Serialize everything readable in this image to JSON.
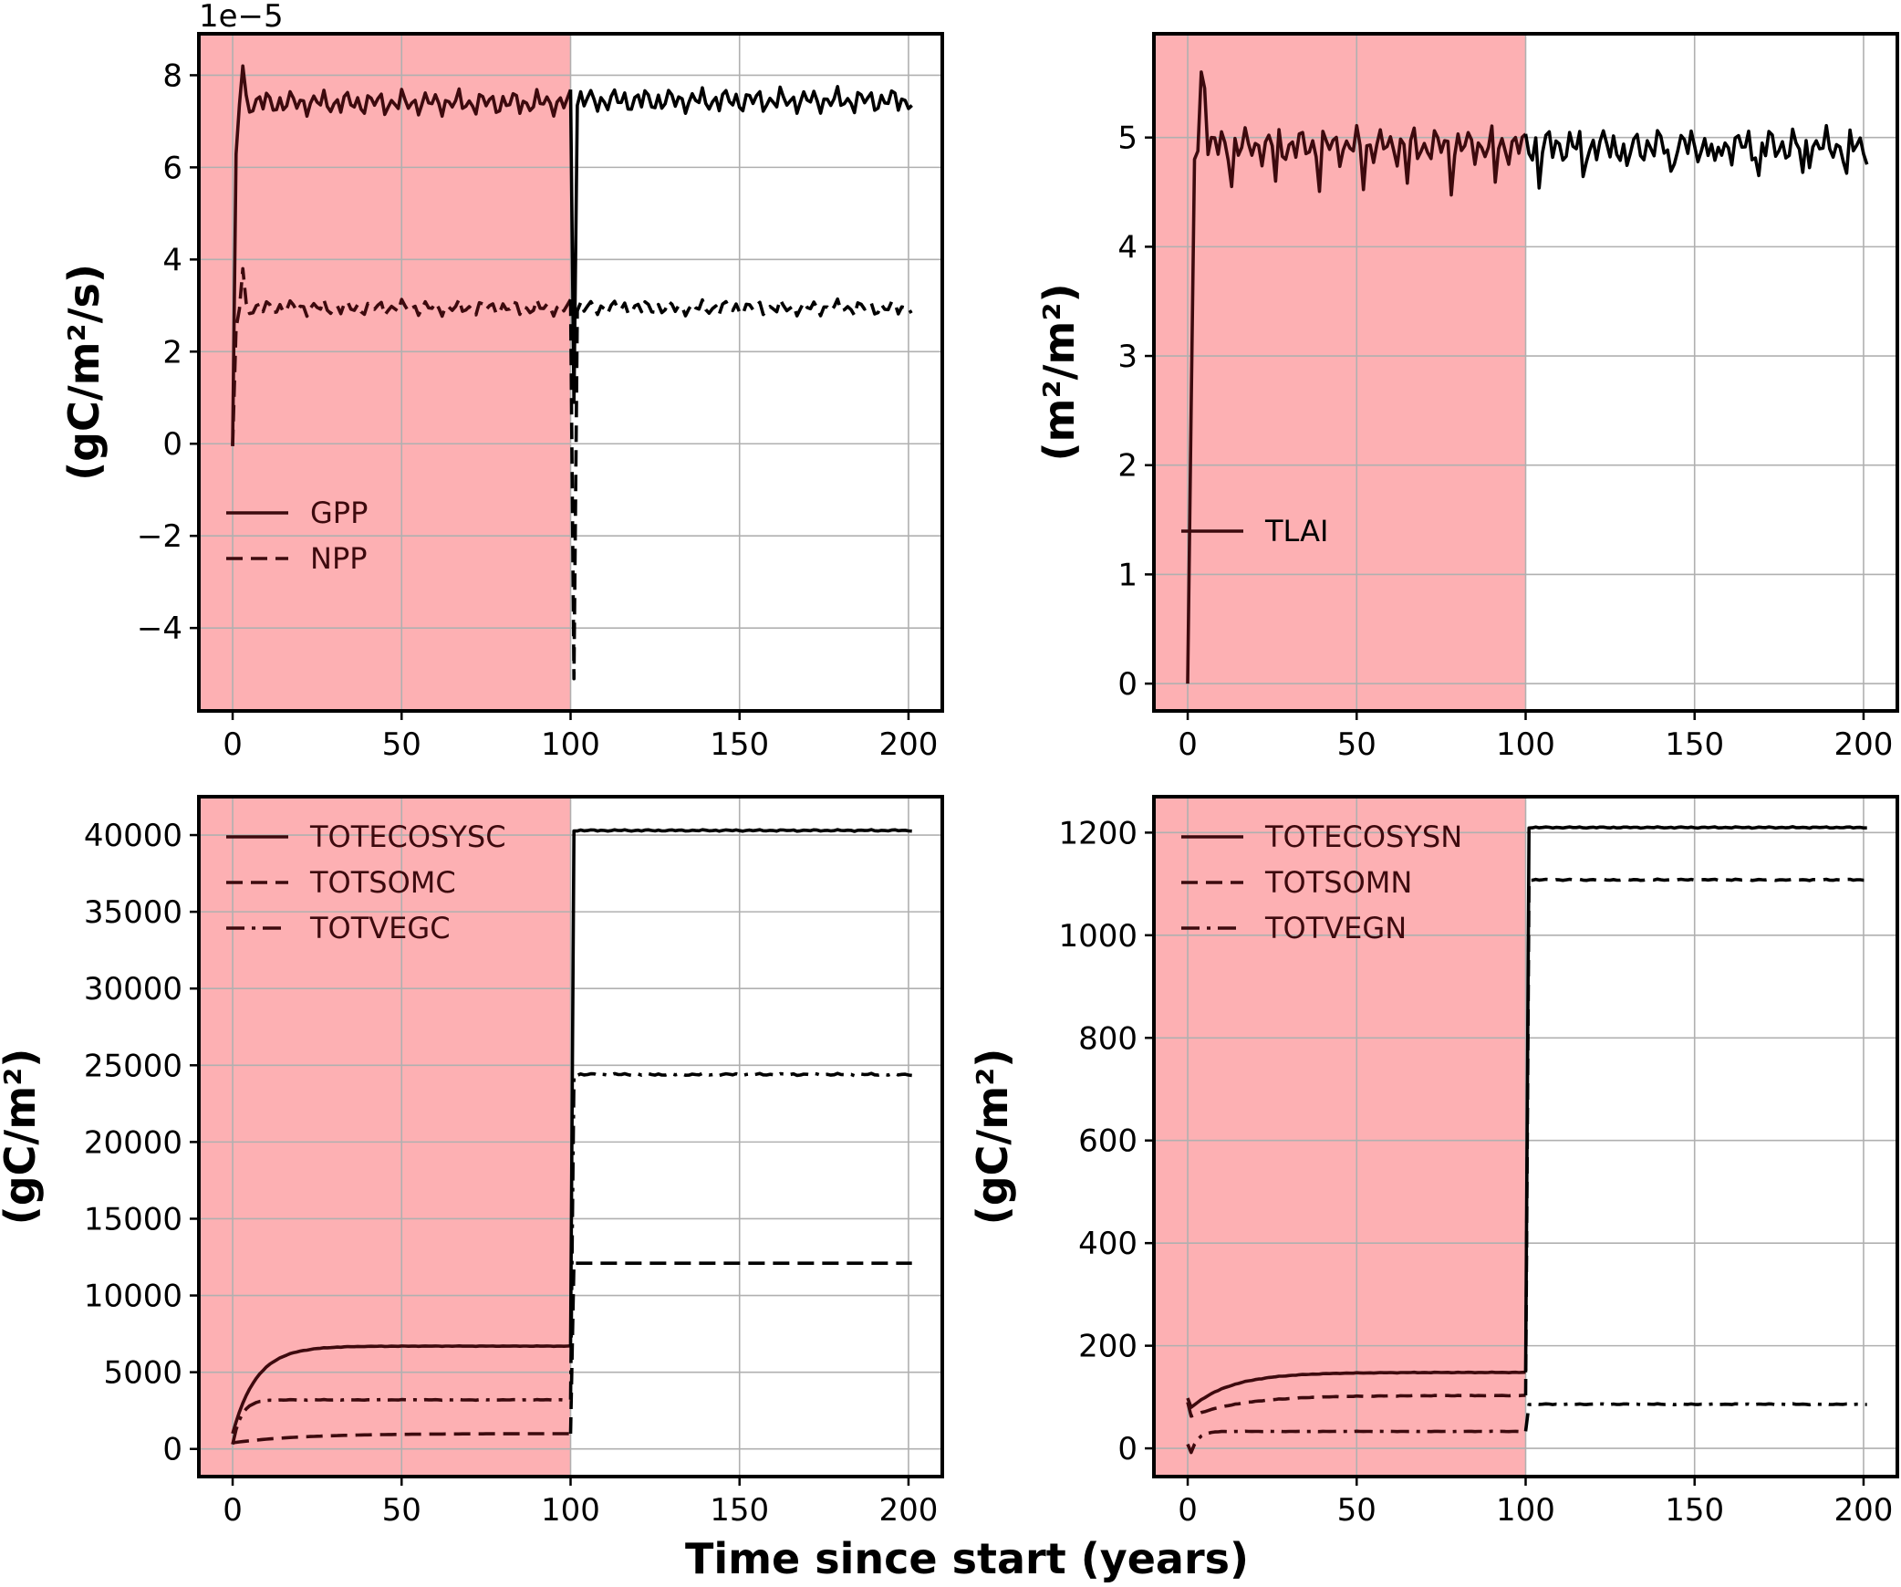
{
  "figure": {
    "xlabel": "Time since start (years)",
    "shade_color": "#fdb0b3",
    "shade_range": [
      0,
      100
    ],
    "line_color_shaded": "#3d0a0e",
    "line_color": "#000000",
    "grid": true
  },
  "chart_data": [
    {
      "type": "line",
      "ylabel": "(gC/m²/s)",
      "offset_text": "1e−5",
      "xlim": [
        -10,
        210
      ],
      "ylim": [
        -5.8,
        8.9
      ],
      "xticks": [
        0,
        50,
        100,
        150,
        200
      ],
      "yticks": [
        -4,
        -2,
        0,
        2,
        4,
        6,
        8
      ],
      "ytick_labels": [
        "−4",
        "−2",
        "0",
        "2",
        "4",
        "6",
        "8"
      ],
      "legend_position": "lower-left",
      "series": [
        {
          "name": "GPP",
          "style": "solid",
          "kind": "gpp",
          "start": -0.05,
          "ramp_years": 2,
          "peak": 8.2,
          "mean": 7.4,
          "amp": 0.32,
          "post_min": 0.9,
          "post_mean": 7.45,
          "post_amp": 0.32
        },
        {
          "name": "NPP",
          "style": "dashed",
          "kind": "gpp",
          "start": -0.05,
          "ramp_years": 2,
          "peak": 3.8,
          "mean": 2.95,
          "amp": 0.2,
          "post_min": -5.1,
          "post_mean": 2.95,
          "post_amp": 0.2
        }
      ]
    },
    {
      "type": "line",
      "ylabel": "(m²/m²)",
      "xlim": [
        -10,
        210
      ],
      "ylim": [
        -0.25,
        5.95
      ],
      "xticks": [
        0,
        50,
        100,
        150,
        200
      ],
      "yticks": [
        0,
        1,
        2,
        3,
        4,
        5
      ],
      "ytick_labels": [
        "0",
        "1",
        "2",
        "3",
        "4",
        "5"
      ],
      "legend_position": "center-left",
      "series": [
        {
          "name": "TLAI",
          "style": "solid",
          "kind": "lai",
          "start": 0,
          "peak": 5.6,
          "mean": 4.92,
          "amp": 0.2
        }
      ]
    },
    {
      "type": "line",
      "ylabel": "(gC/m²)",
      "xlim": [
        -10,
        210
      ],
      "ylim": [
        -1800,
        42500
      ],
      "xticks": [
        0,
        50,
        100,
        150,
        200
      ],
      "yticks": [
        0,
        5000,
        10000,
        15000,
        20000,
        25000,
        30000,
        35000,
        40000
      ],
      "ytick_labels": [
        "0",
        "5000",
        "10000",
        "15000",
        "20000",
        "25000",
        "30000",
        "35000",
        "40000"
      ],
      "legend_position": "upper-left",
      "series": [
        {
          "name": "TOTECOSYSC",
          "style": "solid",
          "kind": "pool",
          "start": 1000,
          "pre_level": 6700,
          "tau": 7,
          "post_level": 40300,
          "noise": 60
        },
        {
          "name": "TOTSOMC",
          "style": "dashed",
          "kind": "pool",
          "start": 400,
          "pre_level": 1000,
          "tau": 20,
          "post_level": 12100,
          "noise": 0
        },
        {
          "name": "TOTVEGC",
          "style": "dashdot",
          "kind": "pool",
          "start": 300,
          "pre_level": 3200,
          "tau": 2.5,
          "post_level": 24400,
          "noise": 80
        }
      ]
    },
    {
      "type": "line",
      "ylabel": "(gC/m²)",
      "xlim": [
        -10,
        210
      ],
      "ylim": [
        -55,
        1270
      ],
      "xticks": [
        0,
        50,
        100,
        150,
        200
      ],
      "yticks": [
        0,
        200,
        400,
        600,
        800,
        1000,
        1200
      ],
      "ytick_labels": [
        "0",
        "200",
        "400",
        "600",
        "800",
        "1000",
        "1200"
      ],
      "legend_position": "upper-left",
      "series": [
        {
          "name": "TOTECOSYSN",
          "style": "solid",
          "kind": "npool",
          "start": 98,
          "dip": 85,
          "pre_level": 148,
          "tau": 12,
          "post_level": 1210,
          "noise": 1.5
        },
        {
          "name": "TOTSOMN",
          "style": "dashed",
          "kind": "npool",
          "start": 90,
          "dip": 65,
          "pre_level": 103,
          "tau": 15,
          "post_level": 1108,
          "noise": 1.5
        },
        {
          "name": "TOTVEGN",
          "style": "dashdot",
          "kind": "npool",
          "start": 8,
          "dip": 8,
          "pre_level": 33,
          "tau": 2,
          "post_level": 86,
          "noise": 1
        }
      ]
    }
  ]
}
